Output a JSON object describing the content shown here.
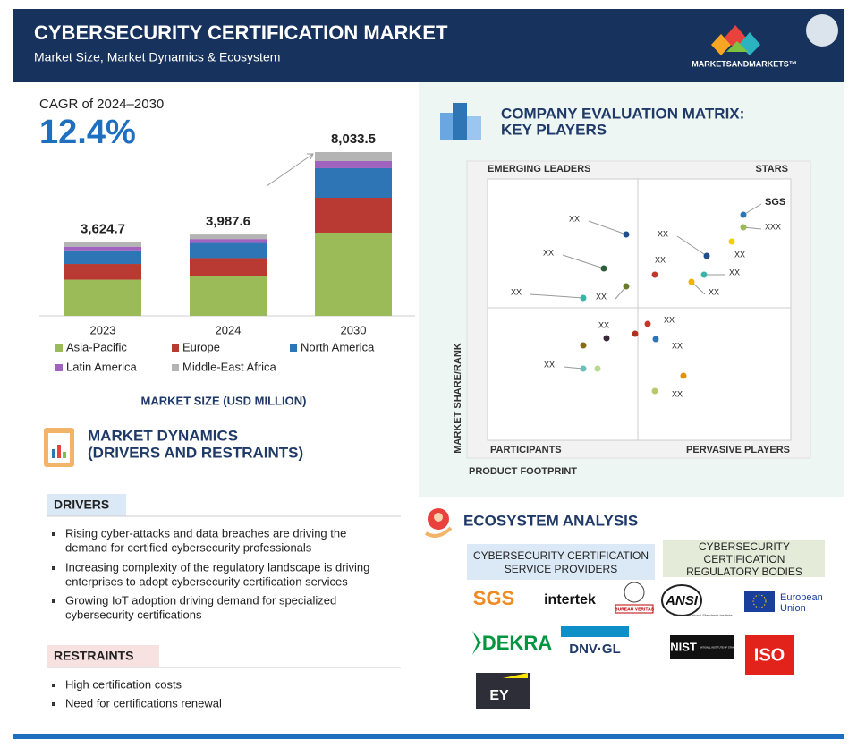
{
  "header": {
    "title": "CYBERSECURITY CERTIFICATION MARKET",
    "subtitle": "Market Size, Market Dynamics & Ecosystem",
    "logo": "MARKETSANDMARKETS™"
  },
  "cagr": {
    "label": "CAGR of 2024–2030",
    "value": "12.4%"
  },
  "chart_data": {
    "type": "bar",
    "stacked": true,
    "categories": [
      "2023",
      "2024",
      "2030"
    ],
    "series": [
      {
        "name": "Asia-Pacific",
        "color": "#9bbb59",
        "values": [
          1774,
          1953,
          4083
        ]
      },
      {
        "name": "Europe",
        "color": "#b93a32",
        "values": [
          771,
          880,
          1712
        ]
      },
      {
        "name": "North America",
        "color": "#2e75b6",
        "values": [
          668,
          743,
          1449
        ]
      },
      {
        "name": "Latin America",
        "color": "#a064c0",
        "values": [
          180,
          193,
          351
        ]
      },
      {
        "name": "Middle-East Africa",
        "color": "#b4b4b4",
        "values": [
          231,
          220,
          439
        ]
      }
    ],
    "totals": [
      3624.7,
      3987.6,
      8033.5
    ],
    "total_labels": [
      "3,624.7",
      "3,987.6",
      "8,033.5"
    ],
    "x_label": "MARKET SIZE (USD MILLION)"
  },
  "dynamics": {
    "title": [
      "MARKET DYNAMICS",
      "(DRIVERS AND RESTRAINTS)"
    ],
    "drivers_title": "DRIVERS",
    "drivers": [
      [
        "Rising cyber-attacks and data breaches are driving the",
        "demand for certified cybersecurity professionals"
      ],
      [
        "Increasing complexity of the regulatory landscape is driving",
        "enterprises to adopt cybersecurity certification services"
      ],
      [
        "Growing IoT adoption driving demand for specialized",
        "cybersecurity certifications"
      ]
    ],
    "restraints_title": "RESTRAINTS",
    "restraints": [
      "High certification costs",
      "Need for certifications renewal"
    ]
  },
  "matrix": {
    "title": [
      "COMPANY EVALUATION MATRIX:",
      "KEY PLAYERS"
    ],
    "quadrants": [
      "EMERGING LEADERS",
      "STARS",
      "PARTICIPANTS",
      "PERVASIVE PLAYERS"
    ],
    "y_label": "MARKET SHARE/RANK",
    "x_label": "PRODUCT FOOTPRINT",
    "labels": [
      "XX",
      "XX",
      "XX",
      "XX",
      "XX",
      "XX",
      "XX",
      "XX",
      "XX",
      "SGS",
      "XXX",
      "XX",
      "XX",
      "XX",
      "XX",
      "XX"
    ]
  },
  "ecosystem": {
    "title": "ECOSYSTEM ANALYSIS",
    "providers_title": [
      "CYBERSECURITY CERTIFICATION",
      "SERVICE PROVIDERS"
    ],
    "bodies_title": [
      "CYBERSECURITY",
      "CERTIFICATION",
      "REGULATORY BODIES"
    ],
    "providers": [
      "SGS",
      "intertek",
      "BUREAU VERITAS",
      "DEKRA",
      "DNV·GL",
      "EY"
    ],
    "bodies": [
      "ANSI",
      "American National Standards Institute",
      "European",
      "Union",
      "NIST",
      "NATIONAL INSTITUTE OF STANDARDS AND TECHNOLOGY",
      "ISO"
    ]
  }
}
